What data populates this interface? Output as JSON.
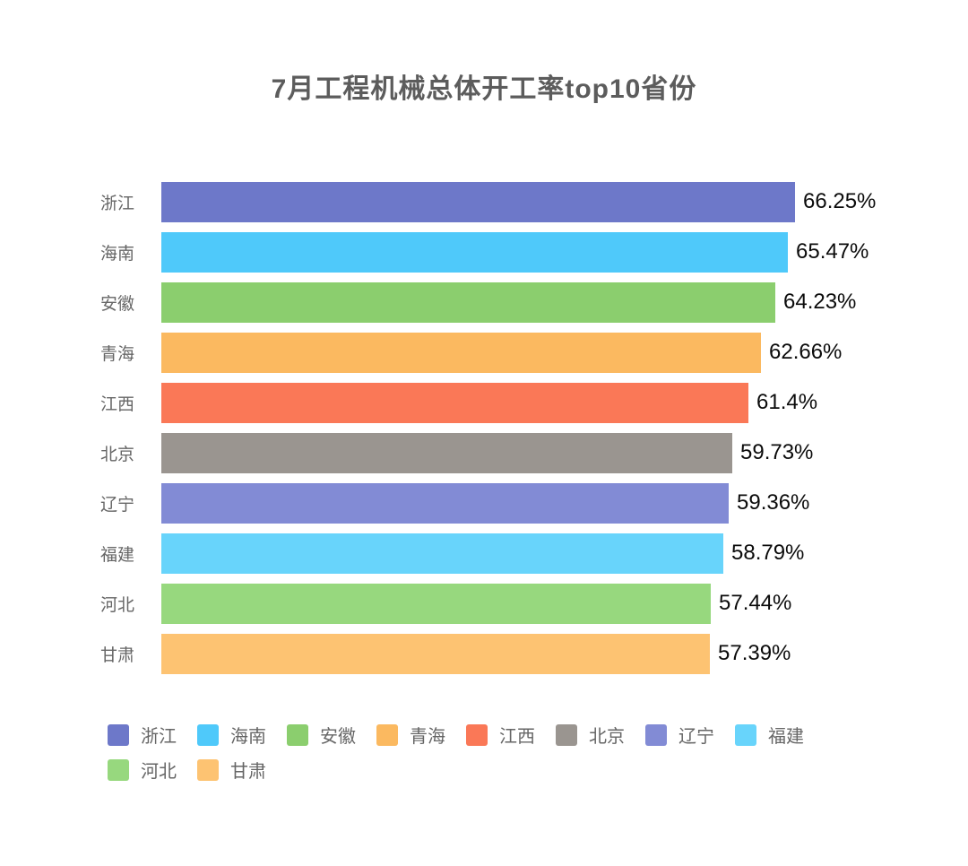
{
  "chart_data": {
    "type": "bar",
    "orientation": "horizontal",
    "title": "7月工程机械总体开工率top10省份",
    "categories": [
      "浙江",
      "海南",
      "安徽",
      "青海",
      "江西",
      "北京",
      "辽宁",
      "福建",
      "河北",
      "甘肃"
    ],
    "values": [
      66.25,
      65.47,
      64.23,
      62.66,
      61.4,
      59.73,
      59.36,
      58.79,
      57.44,
      57.39
    ],
    "value_labels": [
      "66.25%",
      "65.47%",
      "64.23%",
      "62.66%",
      "61.4%",
      "59.73%",
      "59.36%",
      "58.79%",
      "57.44%",
      "57.39%"
    ],
    "bar_colors": [
      "#6D78C9",
      "#4FC9FA",
      "#8BCE6E",
      "#FBB960",
      "#FA7857",
      "#9A9590",
      "#828BD5",
      "#68D4FB",
      "#97D87E",
      "#FDC372"
    ],
    "xlabel": "",
    "ylabel": "",
    "xlim": [
      0,
      70
    ],
    "grid": false,
    "axes_hidden": true,
    "value_label_position": "end-of-bar",
    "legend": {
      "position": "bottom",
      "items": [
        {
          "label": "浙江",
          "color": "#6D78C9"
        },
        {
          "label": "海南",
          "color": "#4FC9FA"
        },
        {
          "label": "安徽",
          "color": "#8BCE6E"
        },
        {
          "label": "青海",
          "color": "#FBB960"
        },
        {
          "label": "江西",
          "color": "#FA7857"
        },
        {
          "label": "北京",
          "color": "#9A9590"
        },
        {
          "label": "辽宁",
          "color": "#828BD5"
        },
        {
          "label": "福建",
          "color": "#68D4FB"
        },
        {
          "label": "河北",
          "color": "#97D87E"
        },
        {
          "label": "甘肃",
          "color": "#FDC372"
        }
      ]
    }
  }
}
